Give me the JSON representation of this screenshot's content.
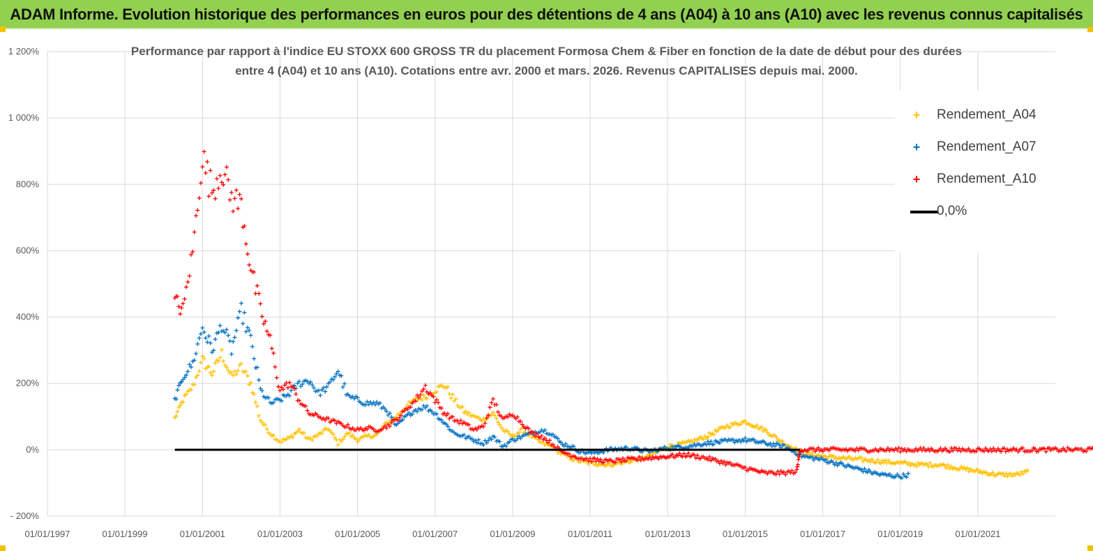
{
  "banner": {
    "title": "ADAM Informe. Evolution historique des performances en euros pour des détentions de 4 ans (A04) à 10 ans (A10) avec les revenus connus capitalisés"
  },
  "colors": {
    "banner_bg": "#92d050",
    "series_a04": "#ffc000",
    "series_a07": "#0070c0",
    "series_a10": "#ff0000",
    "zero_line": "#000000"
  },
  "chart_data": {
    "type": "scatter",
    "title_line1": "Performance par rapport à l'indice EU STOXX 600 GROSS TR  du placement Formosa Chem & Fiber  en fonction de la date de début pour des durées",
    "title_line2": "entre 4 (A04) et 10 ans (A10). Cotations entre avr. 2000 et mars. 2026. Revenus CAPITALISES depuis mai. 2000.",
    "xlabel": "",
    "ylabel": "",
    "xlim": [
      "01/01/1997",
      "01/01/2023"
    ],
    "ylim": [
      -200,
      1200
    ],
    "x_ticks": [
      "01/01/1997",
      "01/01/1999",
      "01/01/2001",
      "01/01/2003",
      "01/01/2005",
      "01/01/2007",
      "01/01/2009",
      "01/01/2011",
      "01/01/2013",
      "01/01/2015",
      "01/01/2017",
      "01/01/2019",
      "01/01/2021"
    ],
    "y_ticks": [
      "- 200%",
      "0%",
      "200%",
      "400%",
      "600%",
      "800%",
      "1 000%",
      "1 200%"
    ],
    "y_tick_values": [
      -200,
      0,
      200,
      400,
      600,
      800,
      1000,
      1200
    ],
    "grid": "horizontal",
    "legend_position": "top-right",
    "legend": [
      "Rendement_A04",
      "Rendement_A07",
      "Rendement_A10",
      "0,0%"
    ],
    "series": [
      {
        "name": "Rendement_A04",
        "marker": "+",
        "points": [
          [
            "2000-04-15",
            95
          ],
          [
            "2000-07-01",
            150
          ],
          [
            "2000-10-01",
            190
          ],
          [
            "2001-01-01",
            270
          ],
          [
            "2001-04-01",
            230
          ],
          [
            "2001-07-01",
            290
          ],
          [
            "2001-10-01",
            220
          ],
          [
            "2002-01-01",
            250
          ],
          [
            "2002-04-01",
            200
          ],
          [
            "2002-07-01",
            90
          ],
          [
            "2002-10-01",
            50
          ],
          [
            "2003-01-01",
            25
          ],
          [
            "2003-04-01",
            35
          ],
          [
            "2003-07-01",
            60
          ],
          [
            "2003-10-01",
            30
          ],
          [
            "2004-01-01",
            45
          ],
          [
            "2004-04-01",
            65
          ],
          [
            "2004-07-01",
            20
          ],
          [
            "2004-10-01",
            50
          ],
          [
            "2005-01-01",
            30
          ],
          [
            "2005-04-01",
            40
          ],
          [
            "2005-07-01",
            45
          ],
          [
            "2005-10-01",
            80
          ],
          [
            "2006-01-01",
            100
          ],
          [
            "2006-04-01",
            130
          ],
          [
            "2006-07-01",
            150
          ],
          [
            "2006-10-01",
            160
          ],
          [
            "2007-01-01",
            180
          ],
          [
            "2007-04-01",
            195
          ],
          [
            "2007-07-01",
            150
          ],
          [
            "2007-10-01",
            115
          ],
          [
            "2008-01-01",
            100
          ],
          [
            "2008-04-01",
            90
          ],
          [
            "2008-07-01",
            110
          ],
          [
            "2008-10-01",
            60
          ],
          [
            "2009-01-01",
            40
          ],
          [
            "2009-04-01",
            60
          ],
          [
            "2009-07-01",
            40
          ],
          [
            "2009-10-01",
            20
          ],
          [
            "2010-01-01",
            10
          ],
          [
            "2010-04-01",
            -10
          ],
          [
            "2010-07-01",
            -25
          ],
          [
            "2010-10-01",
            -35
          ],
          [
            "2011-01-01",
            -40
          ],
          [
            "2011-07-01",
            -45
          ],
          [
            "2012-01-01",
            -35
          ],
          [
            "2012-07-01",
            -20
          ],
          [
            "2013-01-01",
            10
          ],
          [
            "2013-07-01",
            20
          ],
          [
            "2014-01-01",
            40
          ],
          [
            "2014-07-01",
            70
          ],
          [
            "2015-01-01",
            85
          ],
          [
            "2015-07-01",
            60
          ],
          [
            "2016-01-01",
            20
          ],
          [
            "2016-07-01",
            -10
          ],
          [
            "2017-01-01",
            -20
          ],
          [
            "2017-07-01",
            -25
          ],
          [
            "2018-01-01",
            -30
          ],
          [
            "2018-07-01",
            -35
          ],
          [
            "2019-01-01",
            -40
          ],
          [
            "2019-07-01",
            -45
          ],
          [
            "2020-01-01",
            -45
          ],
          [
            "2020-07-01",
            -55
          ],
          [
            "2021-01-01",
            -65
          ],
          [
            "2021-07-01",
            -75
          ],
          [
            "2022-01-01",
            -75
          ],
          [
            "2022-05-01",
            -65
          ]
        ]
      },
      {
        "name": "Rendement_A07",
        "marker": "+",
        "points": [
          [
            "2000-04-15",
            150
          ],
          [
            "2000-07-01",
            220
          ],
          [
            "2000-10-01",
            260
          ],
          [
            "2001-01-01",
            370
          ],
          [
            "2001-04-01",
            300
          ],
          [
            "2001-07-01",
            380
          ],
          [
            "2001-10-01",
            300
          ],
          [
            "2002-01-01",
            420
          ],
          [
            "2002-04-01",
            330
          ],
          [
            "2002-07-01",
            180
          ],
          [
            "2002-10-01",
            140
          ],
          [
            "2003-01-01",
            150
          ],
          [
            "2003-04-01",
            170
          ],
          [
            "2003-07-01",
            200
          ],
          [
            "2003-10-01",
            210
          ],
          [
            "2004-01-01",
            170
          ],
          [
            "2004-04-01",
            190
          ],
          [
            "2004-07-01",
            240
          ],
          [
            "2004-10-01",
            160
          ],
          [
            "2005-01-01",
            150
          ],
          [
            "2005-04-01",
            140
          ],
          [
            "2005-07-01",
            140
          ],
          [
            "2005-10-01",
            120
          ],
          [
            "2006-01-01",
            70
          ],
          [
            "2006-04-01",
            100
          ],
          [
            "2006-07-01",
            120
          ],
          [
            "2006-10-01",
            130
          ],
          [
            "2007-01-01",
            110
          ],
          [
            "2007-04-01",
            80
          ],
          [
            "2007-07-01",
            50
          ],
          [
            "2007-10-01",
            40
          ],
          [
            "2008-01-01",
            30
          ],
          [
            "2008-04-01",
            20
          ],
          [
            "2008-07-01",
            40
          ],
          [
            "2008-10-01",
            10
          ],
          [
            "2009-01-01",
            30
          ],
          [
            "2009-04-01",
            40
          ],
          [
            "2009-07-01",
            50
          ],
          [
            "2009-10-01",
            60
          ],
          [
            "2010-01-01",
            50
          ],
          [
            "2010-04-01",
            20
          ],
          [
            "2010-07-01",
            10
          ],
          [
            "2010-10-01",
            -5
          ],
          [
            "2011-01-01",
            -10
          ],
          [
            "2011-07-01",
            0
          ],
          [
            "2012-01-01",
            5
          ],
          [
            "2012-07-01",
            -5
          ],
          [
            "2013-01-01",
            5
          ],
          [
            "2013-07-01",
            10
          ],
          [
            "2014-01-01",
            20
          ],
          [
            "2014-07-01",
            25
          ],
          [
            "2015-01-01",
            30
          ],
          [
            "2015-07-01",
            20
          ],
          [
            "2016-01-01",
            10
          ],
          [
            "2016-07-01",
            -20
          ],
          [
            "2017-01-01",
            -30
          ],
          [
            "2017-07-01",
            -45
          ],
          [
            "2018-01-01",
            -60
          ],
          [
            "2018-07-01",
            -75
          ],
          [
            "2019-01-01",
            -80
          ],
          [
            "2019-04-01",
            -75
          ]
        ]
      },
      {
        "name": "Rendement_A10",
        "marker": "+",
        "points": [
          [
            "2000-04-15",
            450
          ],
          [
            "2000-07-01",
            420
          ],
          [
            "2000-10-01",
            600
          ],
          [
            "2001-01-01",
            880
          ],
          [
            "2001-04-01",
            780
          ],
          [
            "2001-07-01",
            850
          ],
          [
            "2001-10-01",
            760
          ],
          [
            "2002-01-01",
            740
          ],
          [
            "2002-04-01",
            550
          ],
          [
            "2002-07-01",
            420
          ],
          [
            "2002-10-01",
            330
          ],
          [
            "2003-01-01",
            180
          ],
          [
            "2003-04-01",
            200
          ],
          [
            "2003-07-01",
            150
          ],
          [
            "2003-10-01",
            110
          ],
          [
            "2004-01-01",
            100
          ],
          [
            "2004-04-01",
            90
          ],
          [
            "2004-07-01",
            80
          ],
          [
            "2004-10-01",
            70
          ],
          [
            "2005-01-01",
            60
          ],
          [
            "2005-04-01",
            65
          ],
          [
            "2005-07-01",
            60
          ],
          [
            "2005-10-01",
            70
          ],
          [
            "2006-01-01",
            90
          ],
          [
            "2006-04-01",
            120
          ],
          [
            "2006-07-01",
            150
          ],
          [
            "2006-10-01",
            190
          ],
          [
            "2007-01-01",
            150
          ],
          [
            "2007-04-01",
            110
          ],
          [
            "2007-07-01",
            90
          ],
          [
            "2007-10-01",
            80
          ],
          [
            "2008-01-01",
            60
          ],
          [
            "2008-04-01",
            70
          ],
          [
            "2008-07-01",
            150
          ],
          [
            "2008-10-01",
            90
          ],
          [
            "2009-01-01",
            110
          ],
          [
            "2009-04-01",
            80
          ],
          [
            "2009-07-01",
            50
          ],
          [
            "2009-10-01",
            40
          ],
          [
            "2010-01-01",
            20
          ],
          [
            "2010-04-01",
            -5
          ],
          [
            "2010-07-01",
            -15
          ],
          [
            "2010-10-01",
            -25
          ],
          [
            "2011-01-01",
            -30
          ],
          [
            "2011-07-01",
            -35
          ],
          [
            "2012-01-01",
            -30
          ],
          [
            "2012-07-01",
            -25
          ],
          [
            "2013-01-01",
            -20
          ],
          [
            "2013-07-01",
            -15
          ],
          [
            "2014-01-01",
            -25
          ],
          [
            "2014-07-01",
            -40
          ],
          [
            "2015-01-01",
            -55
          ],
          [
            "2015-07-01",
            -70
          ],
          [
            "2016-01-01",
            -70
          ],
          [
            "2016-05-01",
            -65
          ],
          [
            "2016-06-01",
            0
          ],
          [
            "2017-01-01",
            0
          ],
          [
            "2018-01-01",
            0
          ],
          [
            "2019-01-01",
            0
          ],
          [
            "2020-01-01",
            0
          ],
          [
            "2021-01-01",
            0
          ],
          [
            "2022-01-01",
            0
          ],
          [
            "2023-01-01",
            0
          ],
          [
            "2024-01-01",
            0
          ]
        ]
      }
    ],
    "zero_line": {
      "name": "0,0%",
      "from": "2000-04-15",
      "to": "2016-06-01",
      "value": 0
    }
  }
}
